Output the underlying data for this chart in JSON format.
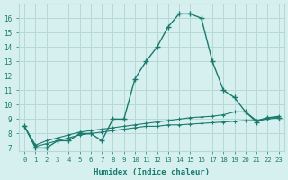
{
  "xlabel": "Humidex (Indice chaleur)",
  "bg_color": "#d6f0ef",
  "grid_color": "#b8d8d8",
  "line_color": "#1a7a6e",
  "xlim": [
    -0.5,
    23.5
  ],
  "ylim": [
    6.8,
    17.0
  ],
  "yticks": [
    7,
    8,
    9,
    10,
    11,
    12,
    13,
    14,
    15,
    16
  ],
  "xticks": [
    0,
    1,
    2,
    3,
    4,
    5,
    6,
    7,
    8,
    9,
    10,
    11,
    12,
    13,
    14,
    15,
    16,
    17,
    18,
    19,
    20,
    21,
    22,
    23
  ],
  "series1_x": [
    0,
    1,
    2,
    3,
    4,
    5,
    6,
    7,
    8,
    9,
    10,
    11,
    12,
    13,
    14,
    15,
    16,
    17,
    18,
    19,
    20,
    21,
    22,
    23
  ],
  "series1_y": [
    8.5,
    7.0,
    7.0,
    7.5,
    7.5,
    8.0,
    8.0,
    7.5,
    9.0,
    9.0,
    11.8,
    13.0,
    14.0,
    15.4,
    16.3,
    16.3,
    16.0,
    13.0,
    11.0,
    10.5,
    9.5,
    8.8,
    9.1,
    9.1
  ],
  "series2_x": [
    0,
    1,
    2,
    3,
    4,
    5,
    6,
    7,
    8,
    9,
    10,
    11,
    12,
    13,
    14,
    15,
    16,
    17,
    18,
    19,
    20,
    21,
    22,
    23
  ],
  "series2_y": [
    8.5,
    7.2,
    7.5,
    7.7,
    7.9,
    8.1,
    8.2,
    8.3,
    8.4,
    8.5,
    8.6,
    8.7,
    8.8,
    8.9,
    9.0,
    9.1,
    9.15,
    9.2,
    9.3,
    9.5,
    9.5,
    8.9,
    9.1,
    9.2
  ],
  "series3_x": [
    0,
    1,
    2,
    3,
    4,
    5,
    6,
    7,
    8,
    9,
    10,
    11,
    12,
    13,
    14,
    15,
    16,
    17,
    18,
    19,
    20,
    21,
    22,
    23
  ],
  "series3_y": [
    8.5,
    7.1,
    7.3,
    7.5,
    7.7,
    7.9,
    8.0,
    8.1,
    8.2,
    8.3,
    8.4,
    8.5,
    8.5,
    8.6,
    8.6,
    8.65,
    8.7,
    8.75,
    8.8,
    8.85,
    8.9,
    8.9,
    9.0,
    9.1
  ]
}
